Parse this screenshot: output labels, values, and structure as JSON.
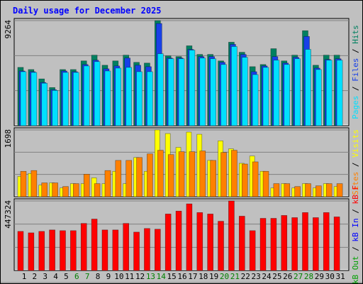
{
  "title": "Daily usage for December 2025",
  "chart_data": [
    {
      "type": "bar",
      "ylim": [
        0,
        9264
      ],
      "yticks": [
        9264
      ],
      "legend_separator": " / ",
      "series": [
        {
          "name": "Hits",
          "color": "#008060",
          "values": [
            5140,
            4949,
            4124,
            3363,
            4949,
            4949,
            5711,
            6218,
            5330,
            5711,
            6218,
            5584,
            5520,
            9264,
            6155,
            6091,
            7043,
            6282,
            6282,
            5711,
            7360,
            6472,
            5203,
            5393,
            6789,
            5711,
            6218,
            8375,
            5330,
            6218,
            6218
          ]
        },
        {
          "name": "Files",
          "color": "#1840e8",
          "values": [
            4822,
            4759,
            3807,
            3173,
            4822,
            4759,
            5393,
            5774,
            5013,
            5266,
            5964,
            5330,
            5203,
            9010,
            5964,
            5964,
            6726,
            6091,
            6091,
            5584,
            7170,
            6282,
            4759,
            5266,
            6091,
            5520,
            6028,
            7868,
            5076,
            5837,
            5901
          ]
        },
        {
          "name": "Pages",
          "color": "#00e0ff",
          "values": [
            4759,
            4695,
            3744,
            3109,
            4695,
            4695,
            5266,
            5647,
            4822,
            5076,
            5139,
            4759,
            4759,
            6345,
            5901,
            5901,
            6662,
            5964,
            5901,
            5393,
            6980,
            6028,
            4505,
            5139,
            5774,
            5393,
            5901,
            6726,
            4949,
            5774,
            5774
          ]
        }
      ]
    },
    {
      "type": "bar",
      "ylim": [
        0,
        1698
      ],
      "yticks": [
        1698
      ],
      "legend_separator": " / ",
      "series": [
        {
          "name": "Visits",
          "color": "#ffff00",
          "values": [
            517,
            591,
            295,
            351,
            222,
            332,
            332,
            480,
            332,
            646,
            332,
            997,
            646,
            1698,
            1606,
            1255,
            1643,
            1588,
            923,
            1421,
            1218,
            849,
            1034,
            646,
            222,
            332,
            222,
            332,
            222,
            332,
            258
          ]
        },
        {
          "name": "Sites",
          "color": "#ff8000",
          "values": [
            646,
            665,
            351,
            351,
            258,
            332,
            572,
            332,
            665,
            923,
            923,
            997,
            1089,
            1181,
            1071,
            1145,
            1145,
            1163,
            923,
            1126,
            1181,
            831,
            886,
            646,
            332,
            332,
            258,
            332,
            276,
            332,
            332
          ]
        }
      ]
    },
    {
      "type": "bar",
      "ylim": [
        0,
        447324
      ],
      "yticks": [
        447324
      ],
      "legend_separator": " / ",
      "categories": [
        "1",
        "2",
        "3",
        "4",
        "5",
        "6",
        "7",
        "8",
        "9",
        "10",
        "11",
        "12",
        "13",
        "14",
        "15",
        "16",
        "17",
        "18",
        "19",
        "20",
        "21",
        "22",
        "23",
        "24",
        "25",
        "26",
        "27",
        "28",
        "29",
        "30",
        "31"
      ],
      "category_colors": [
        "#000000",
        "#000000",
        "#000000",
        "#000000",
        "#000000",
        "#008000",
        "#008000",
        "#000000",
        "#000000",
        "#000000",
        "#000000",
        "#000000",
        "#008000",
        "#008000",
        "#000000",
        "#000000",
        "#000000",
        "#000000",
        "#000000",
        "#008000",
        "#008000",
        "#000000",
        "#000000",
        "#000000",
        "#000000",
        "#000000",
        "#008000",
        "#008000",
        "#000000",
        "#000000",
        "#000000"
      ],
      "series": [
        {
          "name": "kB F",
          "color": "#ff0000",
          "values": [
            251618,
            242299,
            251618,
            260938,
            256278,
            256278,
            302874,
            330832,
            260938,
            260938,
            302874,
            246959,
            270257,
            265597,
            363449,
            382087,
            428683,
            372768,
            363449,
            316853,
            447324,
            349470,
            256278,
            335491,
            335491,
            354130,
            340151,
            372768,
            340151,
            372768,
            344810
          ]
        },
        {
          "name": "kB In",
          "color": "#0000ff",
          "values": [
            0,
            0,
            0,
            0,
            0,
            0,
            0,
            0,
            0,
            0,
            0,
            0,
            0,
            0,
            0,
            0,
            0,
            0,
            0,
            0,
            0,
            0,
            0,
            0,
            0,
            0,
            0,
            0,
            0,
            0,
            0
          ]
        },
        {
          "name": "kB Out",
          "color": "#00a000",
          "values": [
            0,
            0,
            0,
            0,
            0,
            0,
            0,
            0,
            0,
            0,
            0,
            0,
            0,
            0,
            0,
            0,
            0,
            0,
            0,
            0,
            0,
            0,
            0,
            0,
            0,
            0,
            0,
            0,
            0,
            0,
            0
          ]
        }
      ]
    }
  ]
}
